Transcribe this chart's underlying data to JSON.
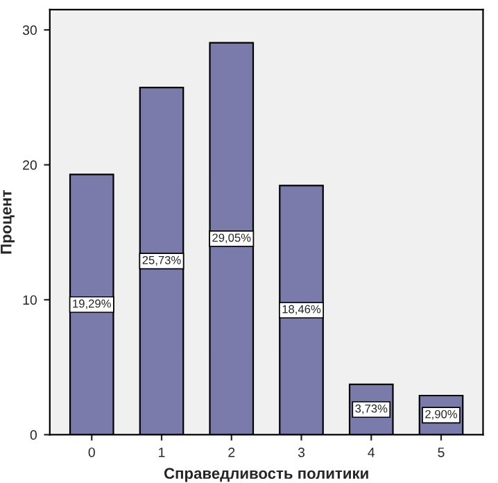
{
  "chart_data": {
    "type": "bar",
    "xlabel": "Справедливость политики",
    "ylabel": "Процент",
    "categories": [
      "0",
      "1",
      "2",
      "3",
      "4",
      "5"
    ],
    "values": [
      19.29,
      25.73,
      29.05,
      18.46,
      3.73,
      2.9
    ],
    "value_labels": [
      "19,29%",
      "25,73%",
      "29,05%",
      "18,46%",
      "3,73%",
      "2,90%"
    ],
    "color": "#7b7bab",
    "ylim": [
      0,
      31.5
    ],
    "yticks": [
      0,
      10,
      20,
      30
    ],
    "grid": false,
    "legend": false
  }
}
